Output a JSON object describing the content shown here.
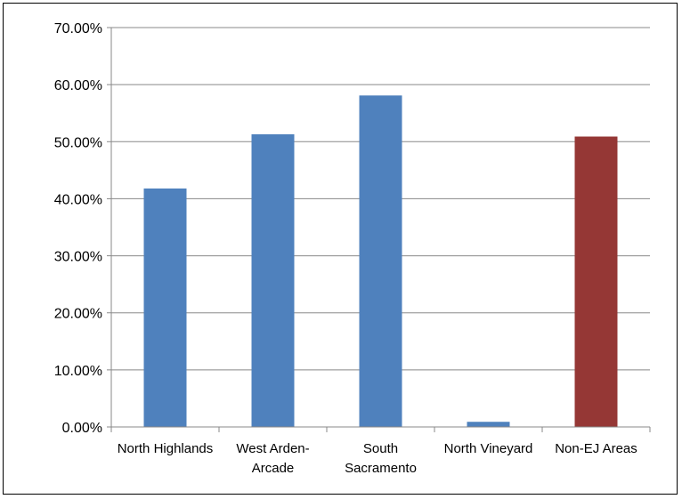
{
  "chart_data": {
    "type": "bar",
    "title": "",
    "xlabel": "",
    "ylabel": "",
    "categories": [
      [
        "North Highlands"
      ],
      [
        "West Arden-",
        "Arcade"
      ],
      [
        "South",
        "Sacramento"
      ],
      [
        "North Vineyard"
      ],
      [
        "Non-EJ Areas"
      ]
    ],
    "values": [
      41.8,
      51.3,
      58.1,
      0.9,
      50.9
    ],
    "bar_colors": [
      "#4F81BD",
      "#4F81BD",
      "#4F81BD",
      "#4F81BD",
      "#953735"
    ],
    "ylim": [
      0,
      70
    ],
    "yticks": [
      {
        "value": 0,
        "label": "0.00%"
      },
      {
        "value": 10,
        "label": "10.00%"
      },
      {
        "value": 20,
        "label": "20.00%"
      },
      {
        "value": 30,
        "label": "30.00%"
      },
      {
        "value": 40,
        "label": "40.00%"
      },
      {
        "value": 50,
        "label": "50.00%"
      },
      {
        "value": 60,
        "label": "60.00%"
      },
      {
        "value": 70,
        "label": "70.00%"
      }
    ],
    "grid": true,
    "legend": "none",
    "colors": {
      "gridline": "#888888",
      "axis": "#888888",
      "text": "#000000"
    }
  }
}
